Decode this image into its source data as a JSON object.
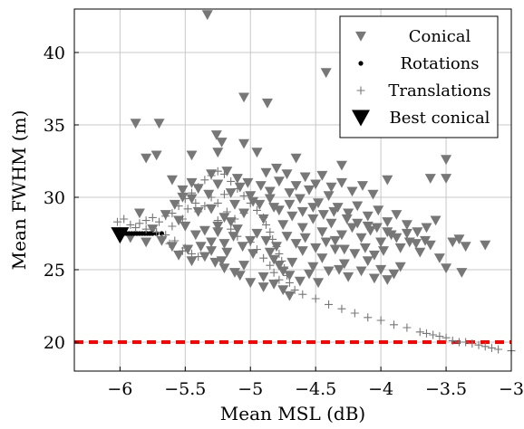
{
  "chart_data": {
    "type": "scatter",
    "xlabel": "Mean MSL (dB)",
    "ylabel": "Mean FWHM (m)",
    "xlim": [
      -6.35,
      -3.0
    ],
    "ylim": [
      18.0,
      43.0
    ],
    "grid": true,
    "legend_position": "top-right",
    "x_ticks": [
      -6,
      -5.5,
      -5,
      -4.5,
      -4,
      -3.5,
      -3
    ],
    "x_tick_labels": [
      "−6",
      "−5.5",
      "−5",
      "−4.5",
      "−4",
      "−3.5",
      "−3"
    ],
    "y_ticks": [
      20,
      25,
      30,
      35,
      40
    ],
    "y_tick_labels": [
      "20",
      "25",
      "30",
      "35",
      "40"
    ],
    "reference_line": {
      "y": 20,
      "color": "#ff0000",
      "style": "dashed"
    },
    "legend": [
      {
        "label": "Conical",
        "marker": "triangle-down"
      },
      {
        "label": "Rotations",
        "marker": "dot"
      },
      {
        "label": "Translations",
        "marker": "plus"
      },
      {
        "label": "Best conical",
        "marker": "triangle-down-large"
      }
    ],
    "series": [
      {
        "name": "Conical",
        "color": "#777777",
        "marker": "triangle-down",
        "points": [
          [
            -5.33,
            42.6
          ],
          [
            -4.42,
            38.6
          ],
          [
            -5.05,
            36.9
          ],
          [
            -4.87,
            36.5
          ],
          [
            -5.88,
            35.1
          ],
          [
            -5.7,
            35.1
          ],
          [
            -5.26,
            34.3
          ],
          [
            -3.5,
            32.6
          ],
          [
            -5.45,
            32.9
          ],
          [
            -5.72,
            32.9
          ],
          [
            -5.8,
            32.7
          ],
          [
            -5.25,
            33.1
          ],
          [
            -5.22,
            33.8
          ],
          [
            -5.05,
            33.7
          ],
          [
            -4.95,
            33.1
          ],
          [
            -4.65,
            32.7
          ],
          [
            -4.3,
            32.2
          ],
          [
            -3.95,
            31.2
          ],
          [
            -3.62,
            31.3
          ],
          [
            -3.5,
            31.3
          ],
          [
            -5.6,
            31.2
          ],
          [
            -5.52,
            30.5
          ],
          [
            -5.45,
            29.9
          ],
          [
            -5.4,
            29.0
          ],
          [
            -5.55,
            28.4
          ],
          [
            -5.75,
            27.8
          ],
          [
            -5.85,
            28.9
          ],
          [
            -5.3,
            31.6
          ],
          [
            -5.18,
            31.8
          ],
          [
            -5.1,
            31.3
          ],
          [
            -5.02,
            31.0
          ],
          [
            -4.92,
            30.8
          ],
          [
            -4.85,
            30.4
          ],
          [
            -4.78,
            31.1
          ],
          [
            -4.7,
            30.3
          ],
          [
            -4.62,
            29.9
          ],
          [
            -4.55,
            30.5
          ],
          [
            -4.48,
            29.6
          ],
          [
            -4.4,
            30.1
          ],
          [
            -4.33,
            29.3
          ],
          [
            -4.25,
            28.9
          ],
          [
            -4.18,
            29.4
          ],
          [
            -4.1,
            28.7
          ],
          [
            -4.02,
            29.1
          ],
          [
            -3.95,
            28.3
          ],
          [
            -3.88,
            28.8
          ],
          [
            -3.8,
            28.1
          ],
          [
            -3.72,
            27.6
          ],
          [
            -3.65,
            27.9
          ],
          [
            -3.58,
            28.4
          ],
          [
            -3.4,
            27.1
          ],
          [
            -3.35,
            26.6
          ],
          [
            -3.2,
            26.7
          ],
          [
            -3.45,
            26.9
          ],
          [
            -3.38,
            24.8
          ],
          [
            -3.5,
            25.1
          ],
          [
            -3.85,
            25.2
          ],
          [
            -3.9,
            24.7
          ],
          [
            -4.0,
            25.0
          ],
          [
            -4.1,
            25.6
          ],
          [
            -4.2,
            26.1
          ],
          [
            -4.28,
            25.4
          ],
          [
            -4.35,
            26.4
          ],
          [
            -4.45,
            25.8
          ],
          [
            -4.52,
            25.2
          ],
          [
            -4.6,
            26.3
          ],
          [
            -4.68,
            25.5
          ],
          [
            -4.75,
            24.9
          ],
          [
            -4.82,
            25.7
          ],
          [
            -4.9,
            24.5
          ],
          [
            -4.98,
            26.1
          ],
          [
            -5.05,
            25.3
          ],
          [
            -5.12,
            24.8
          ],
          [
            -5.18,
            26.2
          ],
          [
            -5.22,
            25.6
          ],
          [
            -5.3,
            26.9
          ],
          [
            -5.38,
            26.6
          ],
          [
            -5.48,
            26.4
          ],
          [
            -5.6,
            26.6
          ],
          [
            -5.68,
            27.0
          ],
          [
            -5.92,
            27.2
          ],
          [
            -5.8,
            26.9
          ],
          [
            -5.3,
            29.2
          ],
          [
            -5.2,
            28.6
          ],
          [
            -5.12,
            29.5
          ],
          [
            -5.05,
            28.9
          ],
          [
            -4.98,
            29.7
          ],
          [
            -4.9,
            28.5
          ],
          [
            -4.82,
            29.3
          ],
          [
            -4.75,
            28.1
          ],
          [
            -4.68,
            28.7
          ],
          [
            -4.6,
            27.9
          ],
          [
            -4.52,
            28.5
          ],
          [
            -4.45,
            27.6
          ],
          [
            -4.38,
            28.2
          ],
          [
            -4.3,
            27.4
          ],
          [
            -4.22,
            27.9
          ],
          [
            -4.15,
            27.2
          ],
          [
            -4.08,
            27.7
          ],
          [
            -4.0,
            26.9
          ],
          [
            -3.92,
            27.4
          ],
          [
            -3.85,
            26.5
          ],
          [
            -3.78,
            26.9
          ],
          [
            -3.7,
            26.2
          ],
          [
            -3.62,
            26.7
          ],
          [
            -3.55,
            25.8
          ],
          [
            -4.95,
            27.5
          ],
          [
            -4.88,
            27.0
          ],
          [
            -4.8,
            26.6
          ],
          [
            -4.72,
            27.3
          ],
          [
            -4.65,
            26.8
          ],
          [
            -4.58,
            27.2
          ],
          [
            -4.5,
            26.5
          ],
          [
            -4.42,
            26.9
          ],
          [
            -4.35,
            27.0
          ],
          [
            -4.28,
            26.4
          ],
          [
            -4.12,
            26.5
          ],
          [
            -4.05,
            26.0
          ],
          [
            -3.98,
            26.3
          ],
          [
            -5.1,
            27.8
          ],
          [
            -5.15,
            28.3
          ],
          [
            -5.25,
            28.0
          ],
          [
            -5.35,
            27.7
          ],
          [
            -5.4,
            30.6
          ],
          [
            -5.32,
            30.2
          ],
          [
            -5.25,
            30.9
          ],
          [
            -5.15,
            30.3
          ],
          [
            -5.08,
            30.7
          ],
          [
            -5.0,
            30.1
          ],
          [
            -4.93,
            29.5
          ],
          [
            -4.85,
            29.9
          ],
          [
            -4.78,
            29.1
          ],
          [
            -4.7,
            29.5
          ],
          [
            -4.6,
            29.0
          ],
          [
            -4.52,
            29.3
          ],
          [
            -4.44,
            28.8
          ],
          [
            -4.36,
            29.0
          ],
          [
            -4.26,
            28.5
          ],
          [
            -4.18,
            28.2
          ],
          [
            -4.1,
            28.0
          ],
          [
            -4.03,
            27.9
          ],
          [
            -3.95,
            27.6
          ],
          [
            -3.88,
            27.2
          ],
          [
            -3.8,
            27.5
          ],
          [
            -3.73,
            26.8
          ],
          [
            -3.66,
            27.0
          ],
          [
            -4.85,
            26.2
          ],
          [
            -4.78,
            25.3
          ],
          [
            -4.7,
            24.6
          ],
          [
            -4.62,
            24.2
          ],
          [
            -4.55,
            24.7
          ],
          [
            -4.48,
            24.1
          ],
          [
            -4.4,
            24.9
          ],
          [
            -4.32,
            25.0
          ],
          [
            -4.25,
            24.5
          ],
          [
            -4.15,
            24.9
          ],
          [
            -4.05,
            24.4
          ],
          [
            -3.95,
            24.3
          ],
          [
            -4.9,
            23.8
          ],
          [
            -4.82,
            24.0
          ],
          [
            -4.75,
            23.6
          ],
          [
            -4.7,
            23.2
          ],
          [
            -5.0,
            24.1
          ],
          [
            -5.08,
            24.6
          ],
          [
            -5.2,
            25.1
          ],
          [
            -5.27,
            25.5
          ],
          [
            -5.35,
            25.9
          ],
          [
            -5.45,
            25.6
          ],
          [
            -5.55,
            26.0
          ],
          [
            -5.0,
            27.0
          ],
          [
            -5.06,
            26.6
          ],
          [
            -5.13,
            27.3
          ],
          [
            -5.2,
            26.8
          ],
          [
            -4.5,
            30.9
          ],
          [
            -4.45,
            31.5
          ],
          [
            -4.38,
            30.7
          ],
          [
            -4.3,
            31.0
          ],
          [
            -4.22,
            30.4
          ],
          [
            -4.14,
            30.8
          ],
          [
            -4.06,
            30.2
          ],
          [
            -4.58,
            31.4
          ],
          [
            -4.65,
            30.8
          ],
          [
            -4.72,
            31.6
          ],
          [
            -4.8,
            32.0
          ],
          [
            -4.88,
            31.7
          ],
          [
            -5.45,
            31.0
          ],
          [
            -5.52,
            30.0
          ],
          [
            -5.58,
            29.5
          ],
          [
            -5.65,
            28.8
          ],
          [
            -5.5,
            28.0
          ],
          [
            -5.42,
            27.4
          ],
          [
            -5.3,
            26.3
          ],
          [
            -5.25,
            27.6
          ]
        ]
      },
      {
        "name": "Rotations",
        "color": "#000000",
        "marker": "dot",
        "points": [
          [
            -5.99,
            27.5
          ],
          [
            -5.97,
            27.5
          ],
          [
            -5.95,
            27.5
          ],
          [
            -5.93,
            27.5
          ],
          [
            -5.91,
            27.5
          ],
          [
            -5.89,
            27.5
          ],
          [
            -5.87,
            27.5
          ],
          [
            -5.85,
            27.5
          ],
          [
            -5.83,
            27.5
          ],
          [
            -5.81,
            27.5
          ],
          [
            -5.79,
            27.5
          ],
          [
            -5.77,
            27.5
          ],
          [
            -5.75,
            27.5
          ],
          [
            -5.72,
            27.5
          ],
          [
            -5.68,
            27.5
          ]
        ]
      },
      {
        "name": "Translations",
        "color": "#777777",
        "marker": "plus",
        "points": [
          [
            -6.02,
            28.3
          ],
          [
            -5.97,
            28.5
          ],
          [
            -5.92,
            28.1
          ],
          [
            -5.88,
            27.9
          ],
          [
            -5.85,
            28.2
          ],
          [
            -5.8,
            28.4
          ],
          [
            -5.75,
            28.6
          ],
          [
            -5.7,
            28.3
          ],
          [
            -5.65,
            28.7
          ],
          [
            -5.6,
            28.9
          ],
          [
            -5.58,
            27.0
          ],
          [
            -5.5,
            26.5
          ],
          [
            -5.45,
            26.1
          ],
          [
            -5.55,
            29.4
          ],
          [
            -5.5,
            29.9
          ],
          [
            -5.45,
            30.3
          ],
          [
            -5.4,
            30.7
          ],
          [
            -5.35,
            31.2
          ],
          [
            -5.3,
            31.5
          ],
          [
            -5.25,
            31.8
          ],
          [
            -5.2,
            31.6
          ],
          [
            -5.15,
            31.1
          ],
          [
            -5.1,
            30.6
          ],
          [
            -5.05,
            30.1
          ],
          [
            -5.0,
            29.6
          ],
          [
            -4.95,
            29.1
          ],
          [
            -4.9,
            28.6
          ],
          [
            -4.88,
            28.1
          ],
          [
            -4.85,
            27.6
          ],
          [
            -4.83,
            27.1
          ],
          [
            -4.8,
            26.6
          ],
          [
            -4.78,
            26.1
          ],
          [
            -4.76,
            25.6
          ],
          [
            -4.74,
            25.1
          ],
          [
            -4.72,
            24.6
          ],
          [
            -4.7,
            24.1
          ],
          [
            -4.66,
            23.6
          ],
          [
            -4.6,
            23.3
          ],
          [
            -4.5,
            23.0
          ],
          [
            -4.4,
            22.6
          ],
          [
            -4.3,
            22.3
          ],
          [
            -4.2,
            22.0
          ],
          [
            -4.1,
            21.7
          ],
          [
            -4.0,
            21.5
          ],
          [
            -3.9,
            21.2
          ],
          [
            -3.8,
            21.0
          ],
          [
            -3.7,
            20.7
          ],
          [
            -3.6,
            20.5
          ],
          [
            -3.5,
            20.3
          ],
          [
            -3.4,
            20.0
          ],
          [
            -3.3,
            19.9
          ],
          [
            -3.2,
            19.7
          ],
          [
            -3.1,
            19.5
          ],
          [
            -3.0,
            19.4
          ],
          [
            -3.25,
            19.8
          ],
          [
            -3.15,
            19.6
          ],
          [
            -3.35,
            20.0
          ],
          [
            -3.45,
            20.1
          ],
          [
            -3.55,
            20.4
          ],
          [
            -3.65,
            20.6
          ],
          [
            -5.25,
            29.6
          ],
          [
            -5.2,
            30.2
          ],
          [
            -5.18,
            29.0
          ],
          [
            -5.12,
            28.5
          ],
          [
            -5.05,
            28.9
          ],
          [
            -5.3,
            30.0
          ],
          [
            -5.35,
            29.4
          ],
          [
            -5.4,
            29.0
          ],
          [
            -5.25,
            28.4
          ],
          [
            -5.15,
            27.8
          ],
          [
            -5.1,
            27.3
          ],
          [
            -5.0,
            26.9
          ],
          [
            -4.95,
            26.4
          ],
          [
            -4.9,
            25.8
          ],
          [
            -4.85,
            25.3
          ],
          [
            -4.82,
            24.8
          ],
          [
            -4.78,
            24.3
          ],
          [
            -5.8,
            27.8
          ],
          [
            -5.72,
            27.6
          ],
          [
            -5.65,
            27.4
          ],
          [
            -5.6,
            28.0
          ],
          [
            -5.52,
            28.5
          ],
          [
            -5.48,
            29.2
          ],
          [
            -5.42,
            29.6
          ],
          [
            -5.62,
            26.8
          ],
          [
            -5.52,
            26.3
          ],
          [
            -5.4,
            25.9
          ]
        ]
      },
      {
        "name": "Best conical",
        "color": "#000000",
        "marker": "triangle-down-large",
        "points": [
          [
            -6.0,
            27.4
          ]
        ]
      }
    ]
  }
}
